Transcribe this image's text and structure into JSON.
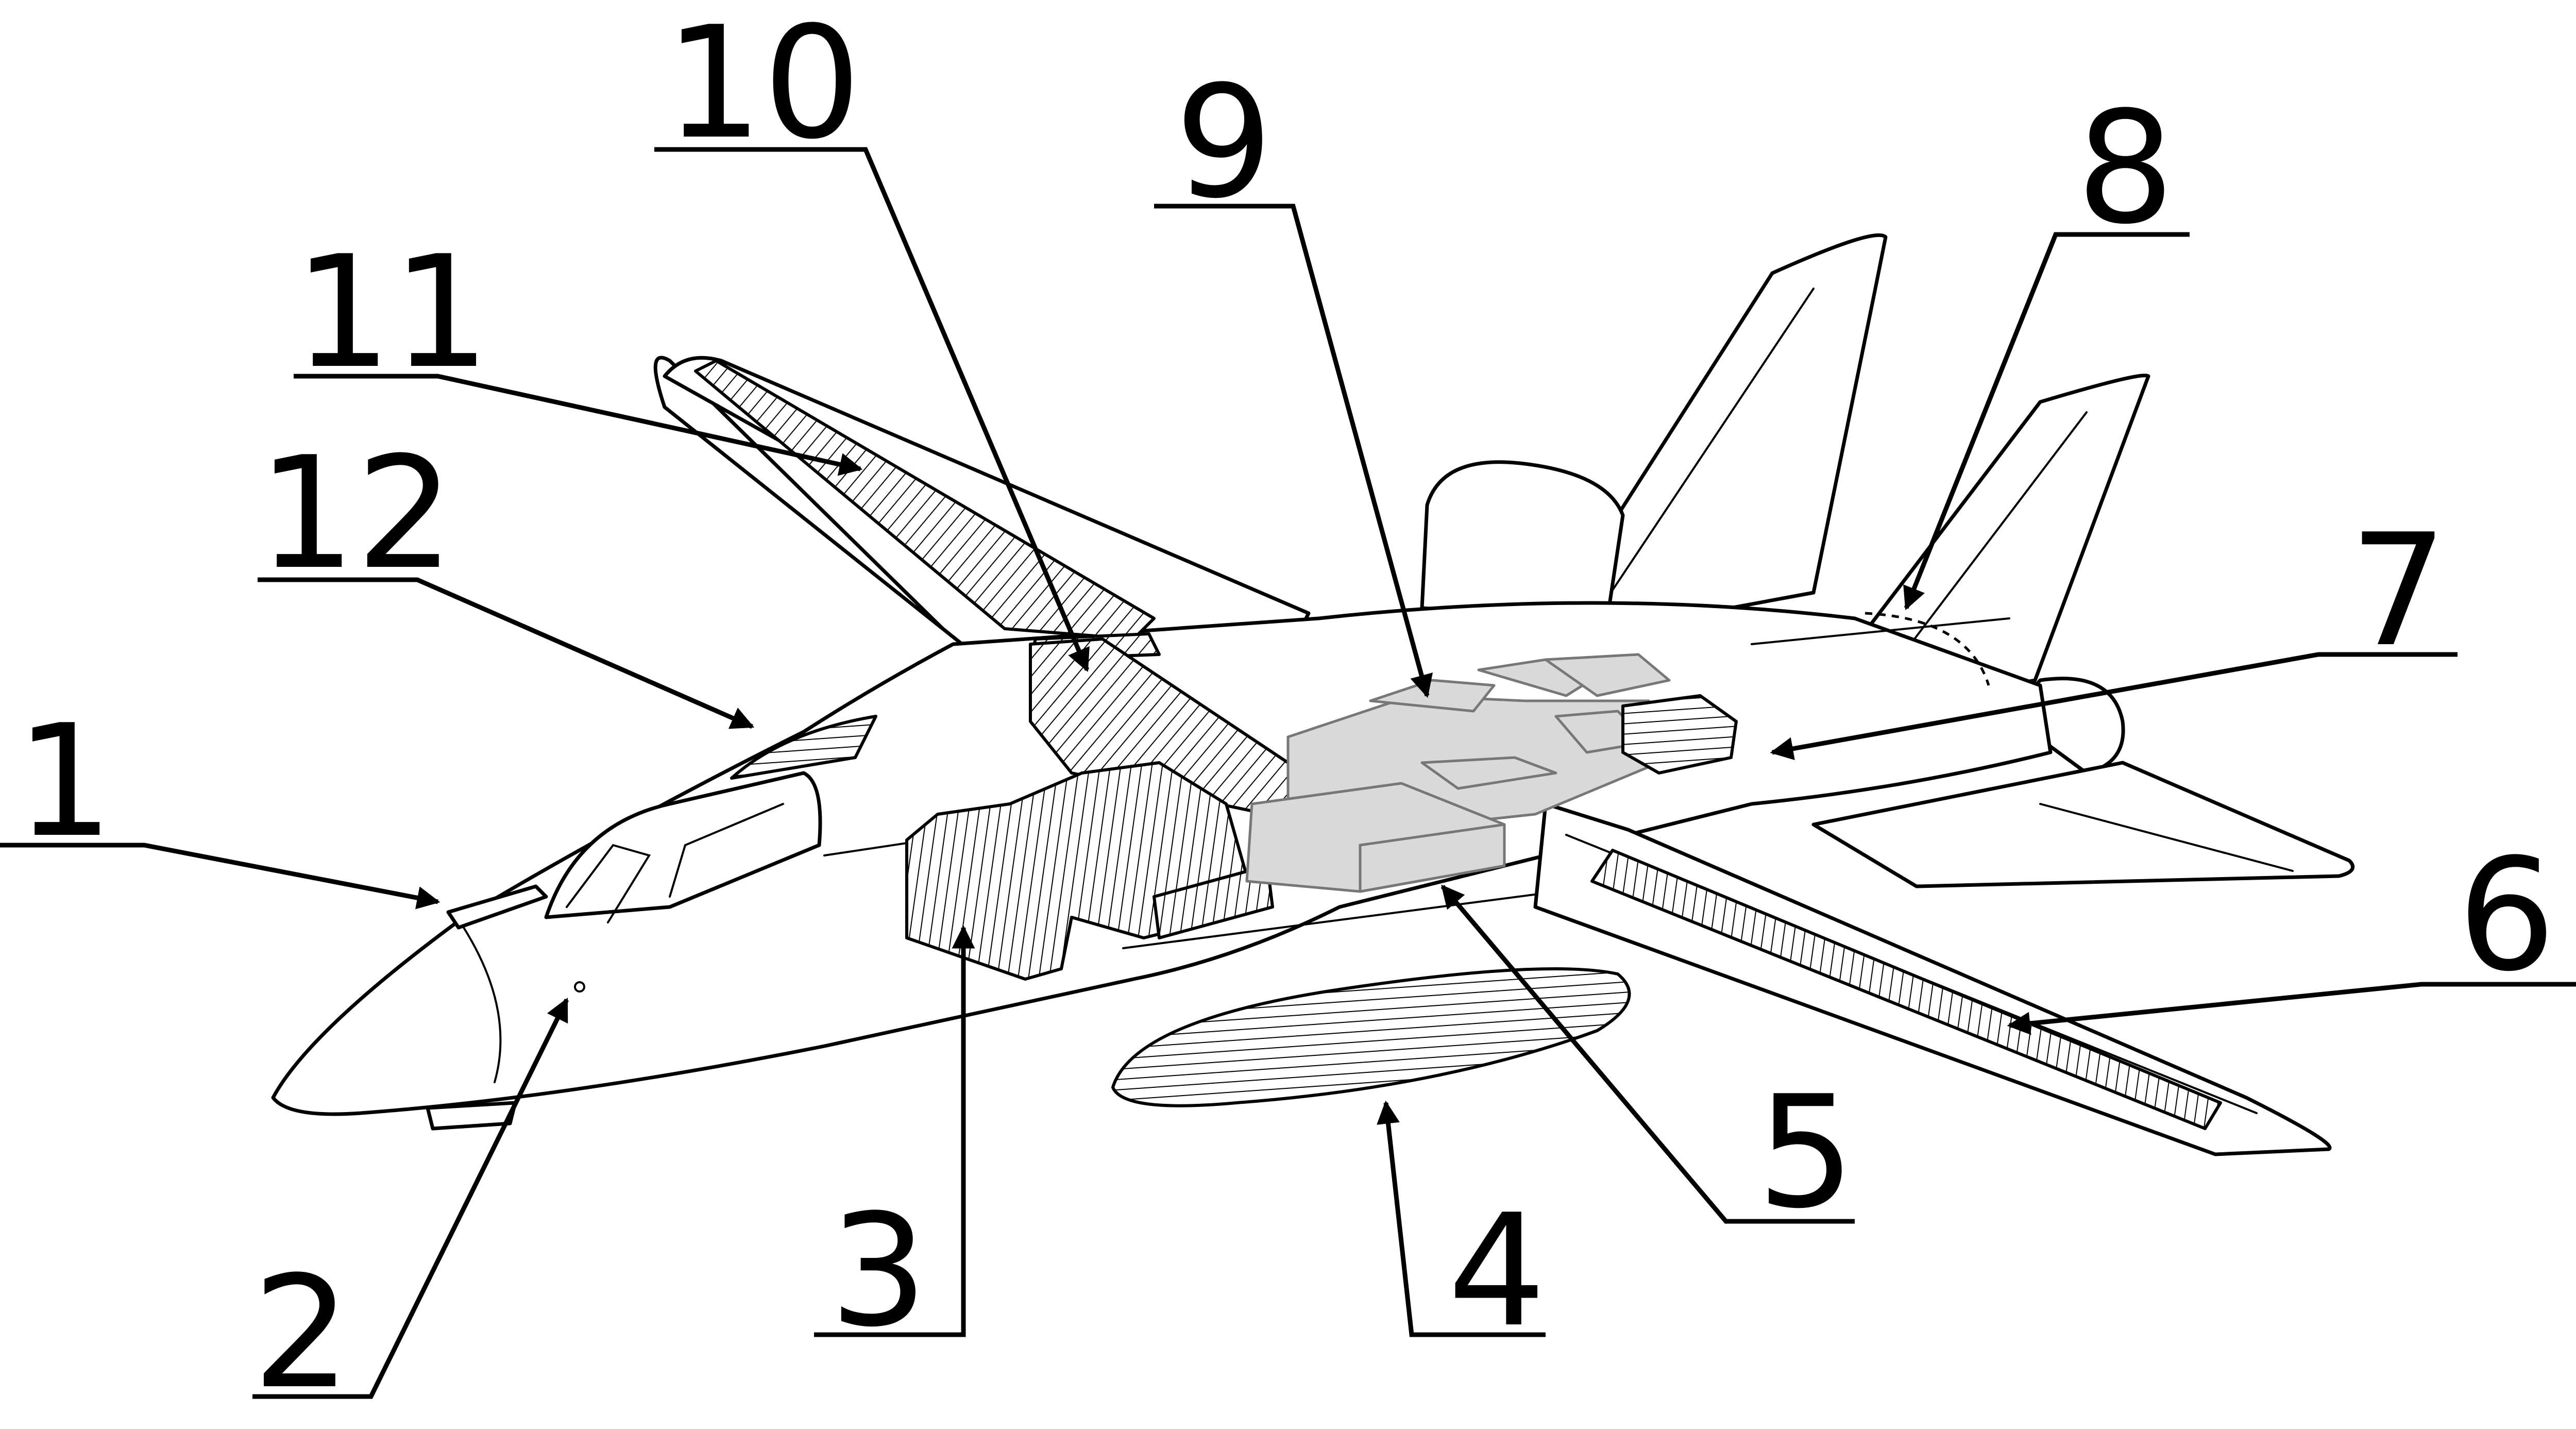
{
  "colors": {
    "line": "#000000",
    "background": "#ffffff",
    "component_fill": "#d9d9d9"
  },
  "callouts": [
    {
      "id": "1",
      "label": "1"
    },
    {
      "id": "2",
      "label": "2"
    },
    {
      "id": "3",
      "label": "3"
    },
    {
      "id": "4",
      "label": "4"
    },
    {
      "id": "5",
      "label": "5"
    },
    {
      "id": "6",
      "label": "6"
    },
    {
      "id": "7",
      "label": "7"
    },
    {
      "id": "8",
      "label": "8"
    },
    {
      "id": "9",
      "label": "9"
    },
    {
      "id": "10",
      "label": "10"
    },
    {
      "id": "11",
      "label": "11"
    },
    {
      "id": "12",
      "label": "12"
    }
  ]
}
